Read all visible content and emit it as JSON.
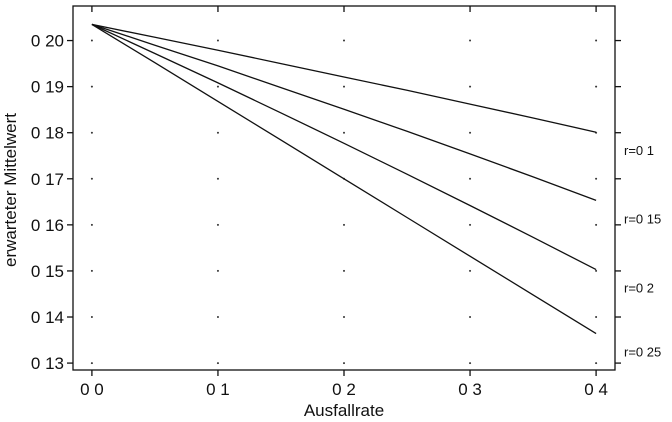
{
  "chart_data": {
    "type": "line",
    "xlabel": "Ausfallrate",
    "ylabel": "erwarteter Mittelwert",
    "xlim": [
      -0.015,
      0.415
    ],
    "ylim": [
      0.1285,
      0.2075
    ],
    "x_ticks": [
      0.0,
      0.1,
      0.2,
      0.3,
      0.4
    ],
    "x_tick_labels": [
      "0 0",
      "0 1",
      "0 2",
      "0 3",
      "0 4"
    ],
    "y_ticks": [
      0.13,
      0.14,
      0.15,
      0.16,
      0.17,
      0.18,
      0.19,
      0.2
    ],
    "y_tick_labels": [
      "0 13",
      "0 14",
      "0 15",
      "0 16",
      "0 17",
      "0 18",
      "0 19",
      "0 20"
    ],
    "grid": "dotted",
    "x": [
      0.0,
      0.05,
      0.1,
      0.15,
      0.2,
      0.25,
      0.3,
      0.35,
      0.4
    ],
    "series": [
      {
        "name": "r=0 1",
        "values": [
          0.2035,
          0.2007,
          0.1979,
          0.195,
          0.1921,
          0.1892,
          0.1862,
          0.1832,
          0.1801
        ]
      },
      {
        "name": "r=0 15",
        "values": [
          0.2035,
          0.199,
          0.1945,
          0.1898,
          0.1851,
          0.1803,
          0.1754,
          0.1704,
          0.1653
        ]
      },
      {
        "name": "r=0 2",
        "values": [
          0.2035,
          0.1972,
          0.1908,
          0.1843,
          0.1777,
          0.171,
          0.1642,
          0.1573,
          0.1503
        ]
      },
      {
        "name": "r=0 25",
        "values": [
          0.2035,
          0.1952,
          0.1868,
          0.1784,
          0.17,
          0.1616,
          0.1532,
          0.1448,
          0.1364
        ]
      }
    ],
    "line_labels": [
      "r=0 1",
      "r=0 15",
      "r=0 2",
      "r=0 25"
    ]
  }
}
